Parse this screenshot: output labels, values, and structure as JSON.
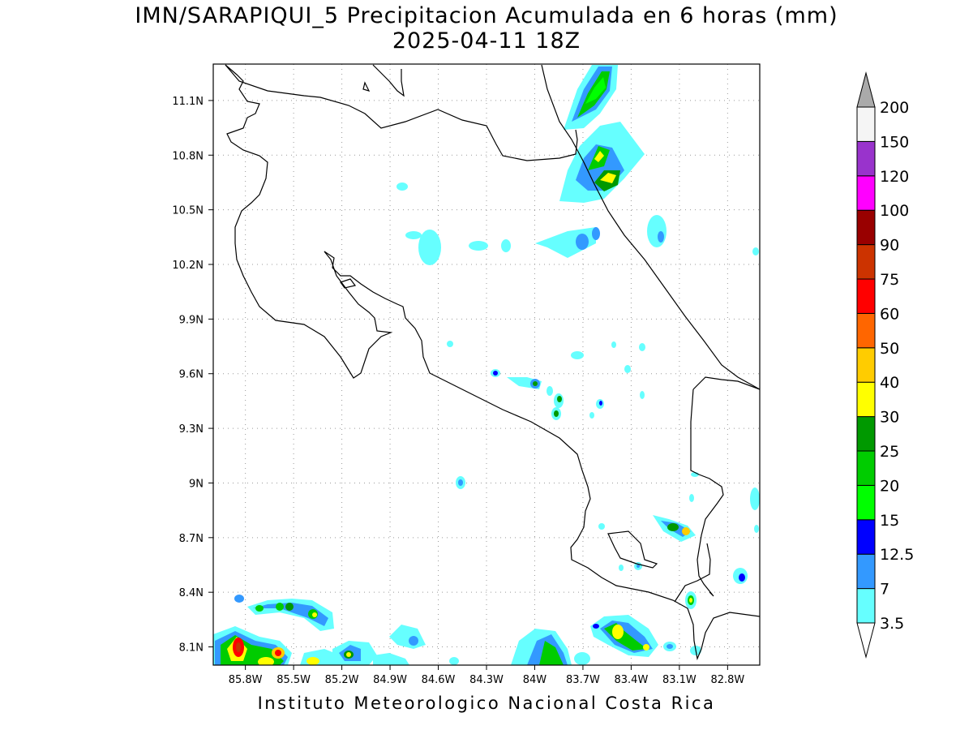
{
  "title": {
    "line1": "IMN/SARAPIQUI_5 Precipitacion Acumulada en 6 horas (mm)",
    "line2": "2025-04-11 18Z"
  },
  "footer": "Instituto Meteorologico Nacional Costa Rica",
  "map": {
    "lon_range": [
      -86.0,
      -82.6
    ],
    "lat_range": [
      8.0,
      11.3
    ],
    "x_ticks": [
      "85.8W",
      "85.5W",
      "85.2W",
      "84.9W",
      "84.6W",
      "84.3W",
      "84W",
      "83.7W",
      "83.4W",
      "83.1W",
      "82.8W"
    ],
    "y_ticks": [
      "11.1N",
      "10.8N",
      "10.5N",
      "10.2N",
      "9.9N",
      "9.6N",
      "9.3N",
      "9N",
      "8.7N",
      "8.4N",
      "8.1N"
    ],
    "grid": true
  },
  "colorbar": {
    "levels": [
      "3.5",
      "7",
      "12.5",
      "15",
      "20",
      "25",
      "30",
      "40",
      "50",
      "60",
      "75",
      "90",
      "100",
      "120",
      "150",
      "200"
    ],
    "colors": [
      "#66ffff",
      "#3399ff",
      "#0000ff",
      "#00ff00",
      "#00cc00",
      "#009900",
      "#ffff00",
      "#ffcc00",
      "#ff6600",
      "#ff0000",
      "#cc3300",
      "#990000",
      "#ff00ff",
      "#9933cc",
      "#f5f5f5",
      "#aaaaaa"
    ]
  }
}
